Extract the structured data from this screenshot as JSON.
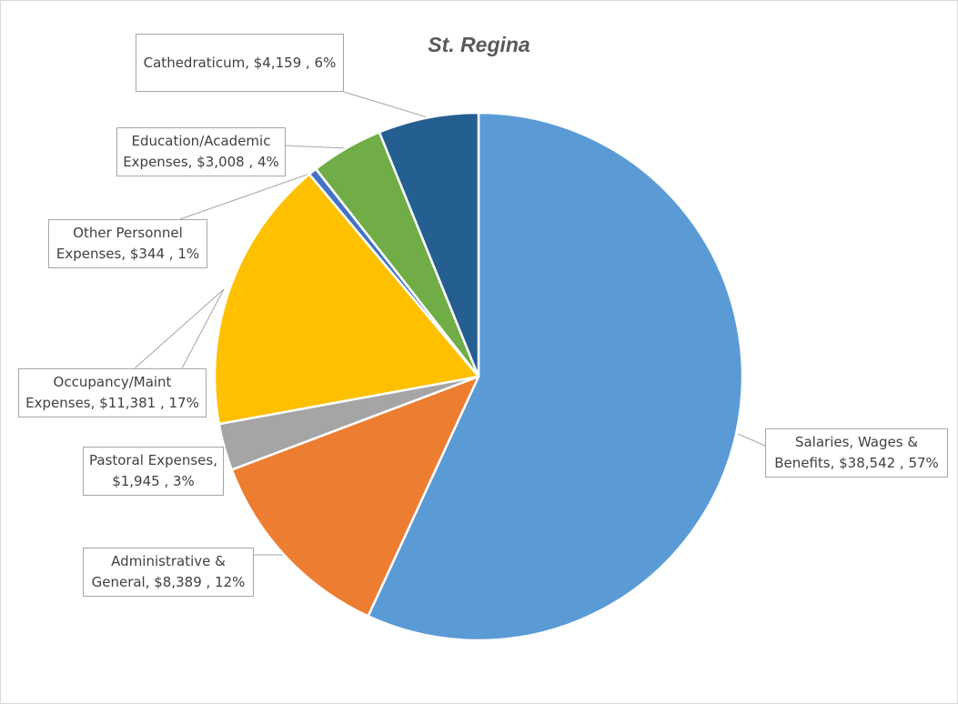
{
  "chart_data": {
    "type": "pie",
    "title": "St. Regina",
    "slices": [
      {
        "label": "Salaries, Wages & Benefits",
        "value": 38542,
        "percent": "57%",
        "value_text": "$38,542",
        "color": "#5b9bd5"
      },
      {
        "label": "Administrative & General",
        "value": 8389,
        "percent": "12%",
        "value_text": "$8,389",
        "color": "#ed7d31"
      },
      {
        "label": "Pastoral Expenses",
        "value": 1945,
        "percent": "3%",
        "value_text": "$1,945",
        "color": "#a5a5a5"
      },
      {
        "label": "Occupancy/Maint Expenses",
        "value": 11381,
        "percent": "17%",
        "value_text": "$11,381",
        "color": "#ffc000"
      },
      {
        "label": "Other Personnel Expenses",
        "value": 344,
        "percent": "1%",
        "value_text": "$344",
        "color": "#4472c4"
      },
      {
        "label": "Education/Academic Expenses",
        "value": 3008,
        "percent": "4%",
        "value_text": "$3,008",
        "color": "#70ad47"
      },
      {
        "label": "Cathedraticum",
        "value": 4159,
        "percent": "6%",
        "value_text": "$4,159",
        "color": "#255e91"
      }
    ],
    "data_labels": [
      {
        "line1": "Salaries, Wages &",
        "line2": "Benefits,  $38,542 , 57%"
      },
      {
        "line1": "Administrative &",
        "line2": "General,  $8,389 , 12%"
      },
      {
        "line1": "Pastoral Expenses,",
        "line2": "$1,945 , 3%"
      },
      {
        "line1": "Occupancy/Maint",
        "line2": "Expenses,  $11,381 , 17%"
      },
      {
        "line1": "Other Personnel",
        "line2": "Expenses,  $344 , 1%"
      },
      {
        "line1": "Education/Academic",
        "line2": "Expenses,  $3,008 , 4%"
      },
      {
        "line1": "Cathedraticum,  $4,159 , 6%",
        "line2": ""
      }
    ],
    "legend": "none"
  }
}
